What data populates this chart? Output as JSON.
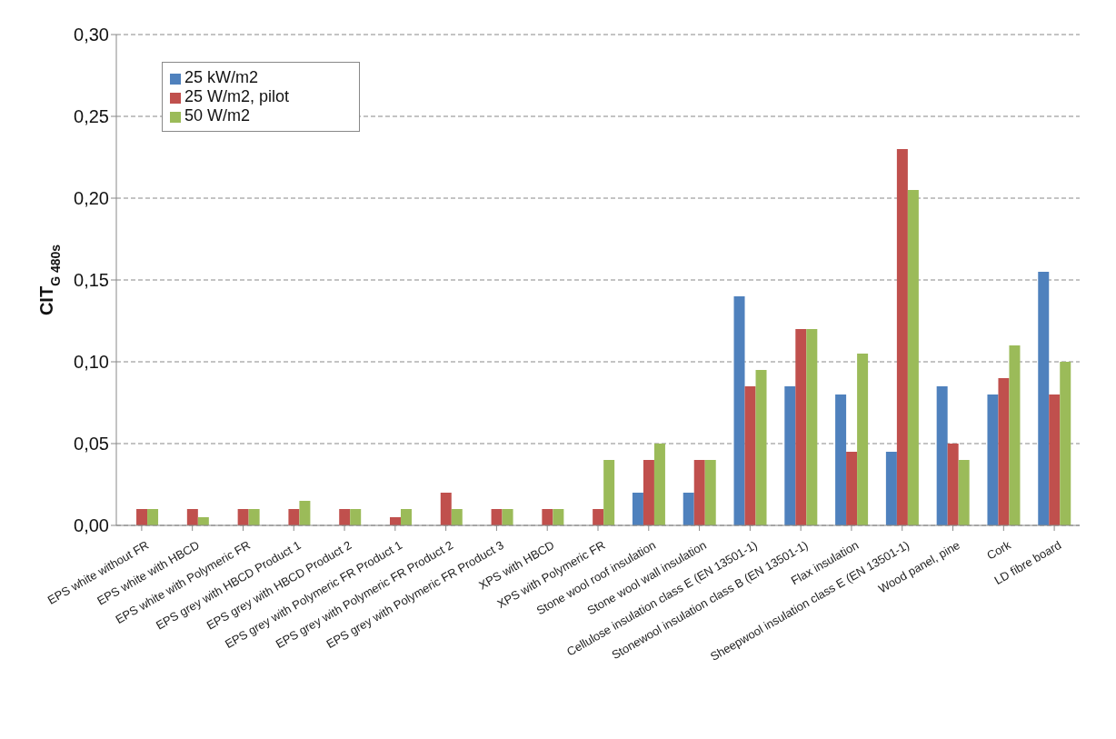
{
  "chart_data": {
    "type": "bar",
    "ylabel": "CIT$_{G 480s}$",
    "categories": [
      "EPS white without FR",
      "EPS white with HBCD",
      "EPS white with Polymeric FR",
      "EPS grey with HBCD Product 1",
      "EPS grey with HBCD Product 2",
      "EPS grey with Polymeric FR Product 1",
      "EPS grey with Polymeric FR Product 2",
      "EPS grey with Polymeric FR Product 3",
      "XPS with HBCD",
      "XPS with Polymeric FR",
      "Stone wool roof insulation",
      "Stone wool wall insulation",
      "Cellulose insulation class E (EN 13501-1)",
      "Stonewool insulation class B (EN 13501-1)",
      "Flax insulation",
      "Sheepwool insulation class E (EN 13501-1)",
      "Wood panel, pine",
      "Cork",
      "LD fibre board"
    ],
    "series": [
      {
        "name": "25 kW/m2",
        "color": "#4f81bd",
        "values": [
          null,
          null,
          null,
          null,
          null,
          null,
          null,
          null,
          null,
          null,
          0.02,
          0.02,
          0.14,
          0.085,
          0.08,
          0.045,
          0.085,
          0.08,
          0.155
        ]
      },
      {
        "name": "25 W/m2, pilot",
        "color": "#c0504d",
        "values": [
          0.01,
          0.01,
          0.01,
          0.01,
          0.01,
          0.005,
          0.02,
          0.01,
          0.01,
          0.01,
          0.04,
          0.04,
          0.085,
          0.12,
          0.045,
          0.23,
          0.05,
          0.09,
          0.08
        ]
      },
      {
        "name": "50 W/m2",
        "color": "#9bbb59",
        "values": [
          0.01,
          0.005,
          0.01,
          0.015,
          0.01,
          0.01,
          0.01,
          0.01,
          0.01,
          0.04,
          0.05,
          0.04,
          0.095,
          0.12,
          0.105,
          0.205,
          0.04,
          0.11,
          0.1
        ]
      }
    ],
    "ylim": [
      0,
      0.3
    ],
    "yticks": [
      {
        "value": 0,
        "label": "0,00"
      },
      {
        "value": 0.05,
        "label": "0,05"
      },
      {
        "value": 0.1,
        "label": "0,10"
      },
      {
        "value": 0.15,
        "label": "0,15"
      },
      {
        "value": 0.2,
        "label": "0,20"
      },
      {
        "value": 0.25,
        "label": "0,25"
      },
      {
        "value": 0.3,
        "label": "0,30"
      }
    ],
    "grid": "y",
    "legend": "top left"
  }
}
